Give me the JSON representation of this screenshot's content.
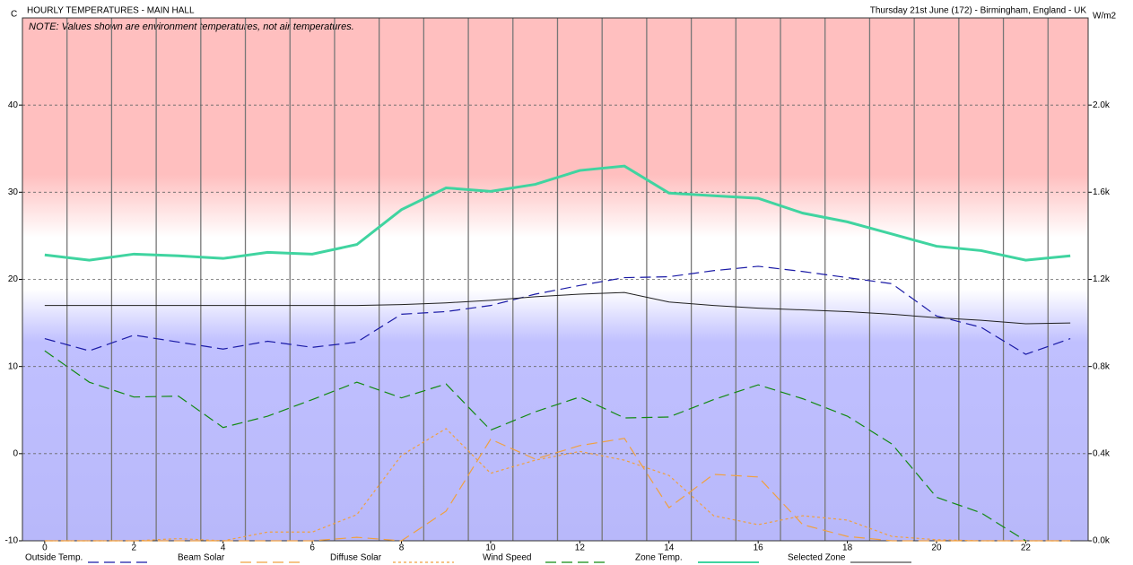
{
  "chart_data": {
    "type": "line",
    "title": "HOURLY TEMPERATURES - MAIN HALL",
    "subtitle": "Thursday 21st June (172) - Birmingham, England - UK",
    "annotation": "NOTE: Values shown are environment temperatures, not air temperatures.",
    "y_label": "C",
    "y2_label": "W/m2",
    "x": [
      0,
      1,
      2,
      3,
      4,
      5,
      6,
      7,
      8,
      9,
      10,
      11,
      12,
      13,
      14,
      15,
      16,
      17,
      18,
      19,
      20,
      21,
      22,
      23
    ],
    "xlim": [
      -0.5,
      23.4
    ],
    "xticks": [
      0,
      2,
      4,
      6,
      8,
      10,
      12,
      14,
      16,
      18,
      20,
      22
    ],
    "ylim": [
      -10,
      50
    ],
    "yticks": [
      -10,
      0,
      10,
      20,
      30,
      40
    ],
    "y2lim": [
      0,
      2400
    ],
    "y2ticks": [
      {
        "value": 0,
        "label": "0.0k"
      },
      {
        "value": 400,
        "label": "0.4k"
      },
      {
        "value": 800,
        "label": "0.8k"
      },
      {
        "value": 1200,
        "label": "1.2k"
      },
      {
        "value": 1600,
        "label": "1.6k"
      },
      {
        "value": 2000,
        "label": "2.0k"
      }
    ],
    "grid": true,
    "series": [
      {
        "name": "Outside Temp.",
        "color": "#1a1aa6",
        "style": "dashed",
        "width": 1.2,
        "values": [
          13.2,
          11.8,
          13.6,
          12.8,
          12,
          12.9,
          12.2,
          12.8,
          16,
          16.3,
          17,
          18.3,
          19.3,
          20.2,
          20.3,
          21,
          21.5,
          20.9,
          20.2,
          19.5,
          15.8,
          14.5,
          11.4,
          13.2
        ]
      },
      {
        "name": "Beam Solar",
        "color": "#f0a040",
        "style": "dashed",
        "width": 1.2,
        "axis": "y2",
        "values": [
          0,
          0,
          0,
          0,
          0,
          0,
          0,
          16,
          0,
          136,
          466,
          375,
          437,
          470,
          152,
          305,
          293,
          74,
          20,
          0,
          0,
          0,
          0,
          0
        ]
      },
      {
        "name": "Diffuse Solar",
        "color": "#f0a040",
        "style": "dotted",
        "width": 1.2,
        "axis": "y2",
        "values": [
          0,
          0,
          0,
          10,
          0,
          40,
          40,
          120,
          392,
          515,
          310,
          370,
          410,
          370,
          300,
          115,
          74,
          115,
          95,
          20,
          5,
          0,
          0,
          0
        ]
      },
      {
        "name": "Wind Speed",
        "color": "#128a12",
        "style": "dashed",
        "width": 1.2,
        "values": [
          11.8,
          8.2,
          6.5,
          6.6,
          3,
          4.3,
          6.2,
          8.2,
          6.4,
          8,
          2.7,
          4.8,
          6.5,
          4.1,
          4.2,
          6.2,
          7.9,
          6.3,
          4.3,
          1.1,
          -5,
          -6.8,
          -10,
          null
        ]
      },
      {
        "name": "Zone Temp.",
        "color": "#40d4a0",
        "style": "solid",
        "width": 3,
        "values": [
          22.8,
          22.2,
          22.9,
          22.7,
          22.4,
          23.1,
          22.9,
          24,
          28,
          30.5,
          30.1,
          30.9,
          32.5,
          33,
          29.9,
          29.6,
          29.3,
          27.6,
          26.6,
          25.2,
          23.8,
          23.3,
          22.2,
          22.7
        ]
      },
      {
        "name": "Selected Zone",
        "color": "#202020",
        "style": "solid",
        "width": 1,
        "values": [
          17,
          17,
          17,
          17,
          17,
          17,
          17,
          17,
          17.1,
          17.3,
          17.6,
          18,
          18.3,
          18.5,
          17.4,
          17,
          16.7,
          16.5,
          16.3,
          16,
          15.6,
          15.3,
          14.9,
          15
        ]
      }
    ]
  }
}
